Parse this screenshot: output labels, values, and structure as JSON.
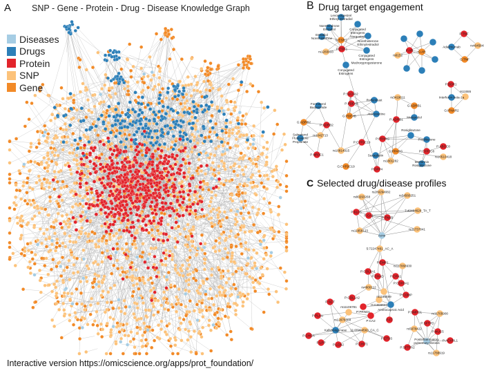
{
  "panel_a": {
    "letter": "A",
    "title": "SNP - Gene - Protein - Drug - Disease Knowledge Graph",
    "legend": [
      {
        "label": "Diseases",
        "color": "#a6cde4"
      },
      {
        "label": "Drugs",
        "color": "#2c7fb8"
      },
      {
        "label": "Protein",
        "color": "#e2242b"
      },
      {
        "label": "SNP",
        "color": "#fcc27a"
      },
      {
        "label": "Gene",
        "color": "#f28a27"
      }
    ]
  },
  "panel_b": {
    "letter": "B",
    "title": "Drug target engagement",
    "nodes": [
      "P:ESR1",
      "G:ESR1",
      "Levonorgestrel Ethinyl Estradiol",
      "Norethindrone Estradiol",
      "Conjugated Estrogens Norgestrel",
      "Estradiol Norethisterone",
      "Norethisterone Ethinylestradiol",
      "Conjugated Estrogens Medroxyprogesterone",
      "Conjugated Estrogens",
      "rs1283933",
      "P:AR",
      "G:AR",
      "",
      "",
      "",
      "",
      "",
      "",
      "",
      "rs6152",
      "P:TNF",
      "Adalimumab",
      "rs4645843",
      "G:TNF",
      "P:DDR1",
      "Interferon beta-1a",
      "rs11555",
      "G:IFNAR2",
      "Formoterol Budesonide",
      "G:ADRB2",
      "P:ADRB2",
      "rs1042713",
      "Salmeterol Fluticasone Propionate",
      "P:NR3C1",
      "P:SLC6A2",
      "P:PDE4B",
      "G:PDE4B",
      "Atomoxetine",
      "Roflumilast",
      "rs3419611",
      "G:ADRB1",
      "P:ADRB1",
      "Metoprolol",
      "P:PPARG",
      "Pioglitazone",
      "P:CYP2C8",
      "Rosiglitazone",
      "G:PPARG",
      "P:DPP4",
      "rs10814915",
      "P:CYP2C19",
      "rs1801282",
      "Saxagliptin",
      "Metformin Rosiglitazone",
      "rs10510418",
      "G:CYP2C19",
      "P:ABCC8"
    ]
  },
  "panel_c": {
    "letter": "C",
    "title": "Selected drug/disease profiles",
    "nodes": [
      "rs289294082",
      "rs80293268",
      "rs34560251",
      "P:KLF5",
      "P:CA1",
      "P:TNXB",
      "7:40484628_TA_T",
      "rs11858123",
      "rs11737841",
      "Acne",
      "5:72247461_AC_A",
      "P:COL6A1",
      "P:EMP1",
      "rs117068930",
      "P:CHAD",
      "P:CPA1",
      "P:CDH3A1",
      "rs4800112",
      "rs1186499",
      "P:COMP",
      "P:COL1A2",
      "rs11866624",
      "P:PRND1",
      "Aminocaproic Acid",
      "P:F7",
      "P:SCT",
      "P:PLAU",
      "rs11106781",
      "rs12976388",
      "P:CA2",
      "Kallidinogenase",
      "11:65994563_CA_C",
      "P:CHGA",
      "P:LPP",
      "P:LCN2",
      "P:CHIT1",
      "P:CTSS",
      "P:SMPD1",
      "rs11705900",
      "P:SFTPD",
      "rs5978422",
      "P:MUC5",
      "Postinflammatory pulmonary fibrosis",
      "P:ACVRL1",
      "P:SFTPA2",
      "rs11788919"
    ]
  },
  "footer": "Interactive version https://omicscience.org/apps/prot_foundation/"
}
